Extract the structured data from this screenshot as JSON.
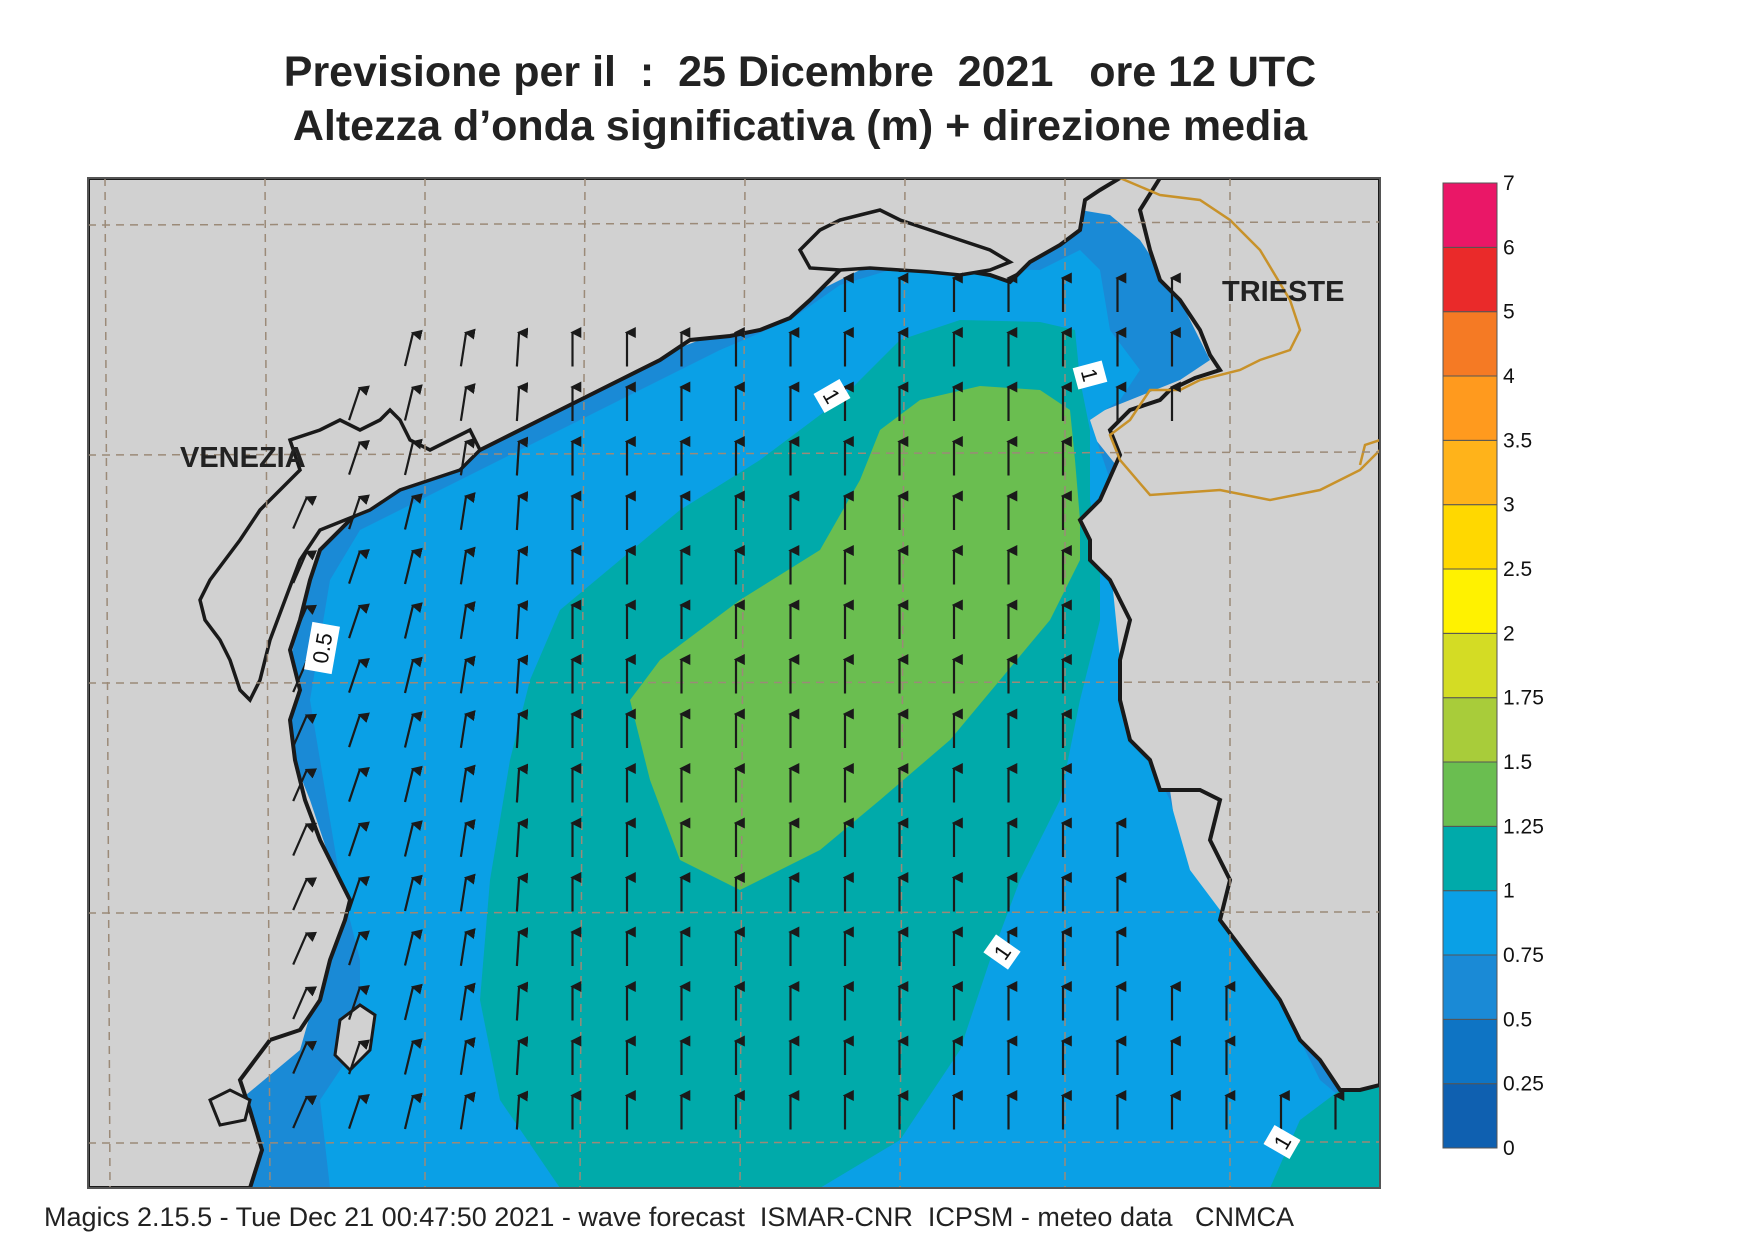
{
  "header": {
    "title_line1": "Previsione per il  :  25 Dicembre  2021   ore 12 UTC",
    "title_line2": "Altezza d’onda significativa (m) + direzione media"
  },
  "map": {
    "labels": {
      "venezia": "VENEZIA",
      "trieste": "TRIESTE"
    },
    "contour_labels": [
      "1",
      "1",
      "0.5",
      "1",
      "1"
    ],
    "colors": {
      "land": "#d1d1d1",
      "coastline": "#1a1a1a",
      "border": "#c8922a",
      "grid": "#9b8a78",
      "arrow": "#1a1a1a"
    },
    "mean_wave_direction": "from south, arrows pointing north"
  },
  "colorbar": {
    "ticks": [
      "0",
      "0.25",
      "0.5",
      "0.75",
      "1",
      "1.25",
      "1.5",
      "1.75",
      "2",
      "2.5",
      "3",
      "3.5",
      "4",
      "5",
      "6",
      "7"
    ],
    "colors": [
      "#0f60b0",
      "#0e74c4",
      "#1a8ad6",
      "#0aa0e6",
      "#00aaaa",
      "#6abe50",
      "#a8cc3a",
      "#d4dc24",
      "#fff200",
      "#ffd800",
      "#ffb31a",
      "#ff9a1e",
      "#f57a24",
      "#ea2a2a",
      "#ea1767"
    ]
  },
  "footer": {
    "text": "Magics 2.15.5 - Tue Dec 21 00:47:50 2021 - wave forecast  ISMAR-CNR  ICPSM - meteo data   CNMCA"
  }
}
